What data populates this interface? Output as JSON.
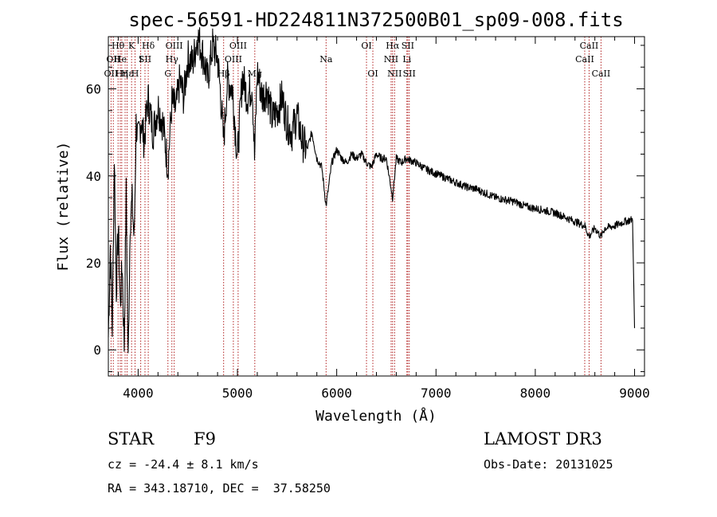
{
  "chart_data": {
    "type": "line",
    "title": "spec-56591-HD224811N372500B01_sp09-008.fits",
    "xlabel": "Wavelength (Å)",
    "ylabel": "Flux (relative)",
    "xlim": [
      3700,
      9100
    ],
    "ylim": [
      -6,
      72
    ],
    "xticks": [
      4000,
      5000,
      6000,
      7000,
      8000,
      9000
    ],
    "yticks": [
      0,
      20,
      40,
      60
    ],
    "series": [
      {
        "name": "spectrum",
        "x": [
          3700,
          3720,
          3740,
          3760,
          3780,
          3800,
          3820,
          3840,
          3860,
          3880,
          3900,
          3920,
          3940,
          3960,
          3980,
          4000,
          4030,
          4060,
          4100,
          4150,
          4200,
          4250,
          4300,
          4340,
          4380,
          4420,
          4460,
          4500,
          4550,
          4600,
          4650,
          4700,
          4750,
          4800,
          4830,
          4861,
          4900,
          4950,
          5000,
          5050,
          5100,
          5150,
          5172,
          5200,
          5250,
          5300,
          5350,
          5400,
          5450,
          5500,
          5550,
          5600,
          5650,
          5700,
          5750,
          5800,
          5850,
          5893,
          5950,
          6000,
          6050,
          6100,
          6150,
          6200,
          6250,
          6300,
          6350,
          6400,
          6450,
          6500,
          6563,
          6600,
          6650,
          6700,
          6800,
          6900,
          7000,
          7100,
          7200,
          7300,
          7400,
          7500,
          7600,
          7700,
          7800,
          7900,
          8000,
          8100,
          8200,
          8300,
          8400,
          8500,
          8542,
          8600,
          8662,
          8700,
          8800,
          8900,
          8980,
          9000
        ],
        "y": [
          3,
          24,
          5,
          45,
          14,
          28,
          10,
          20,
          1,
          36,
          -3,
          30,
          34,
          25,
          52,
          48,
          53,
          48,
          58,
          50,
          56,
          52,
          42,
          57,
          55,
          62,
          58,
          67,
          66,
          72,
          68,
          62,
          70,
          67,
          59,
          48,
          62,
          60,
          44,
          63,
          58,
          61,
          44,
          64,
          58,
          60,
          53,
          55,
          58,
          52,
          50,
          54,
          48,
          46,
          50,
          44,
          42,
          33,
          43,
          46,
          44,
          43,
          45,
          44,
          45,
          43,
          42,
          45,
          44,
          44,
          35,
          44,
          43,
          44,
          43,
          41.5,
          40.5,
          39.5,
          38.5,
          37.5,
          37,
          36,
          35,
          34.5,
          34,
          33,
          32.5,
          32,
          31.5,
          30.5,
          29.5,
          28.5,
          26,
          28,
          26,
          28,
          28.5,
          29.5,
          30,
          5
        ]
      }
    ],
    "lines": [
      {
        "x": 3727,
        "label": "OII",
        "row": 2
      },
      {
        "x": 3750,
        "label": "OII",
        "row": 1
      },
      {
        "x": 3798,
        "label": "Hθ",
        "row": 0
      },
      {
        "x": 3820,
        "label": "He",
        "row": 1
      },
      {
        "x": 3835,
        "label": "Hη",
        "row": 2
      },
      {
        "x": 3869,
        "label": "",
        "row": -1
      },
      {
        "x": 3889,
        "label": "Hε",
        "row": 2
      },
      {
        "x": 3934,
        "label": "K",
        "row": 0
      },
      {
        "x": 3969,
        "label": "H",
        "row": 2
      },
      {
        "x": 4026,
        "label": "I",
        "row": 1
      },
      {
        "x": 4069,
        "label": "SII",
        "row": 1
      },
      {
        "x": 4102,
        "label": "Hδ",
        "row": 0
      },
      {
        "x": 4300,
        "label": "G",
        "row": 2
      },
      {
        "x": 4340,
        "label": "Hγ",
        "row": 1
      },
      {
        "x": 4363,
        "label": "OIII",
        "row": 0
      },
      {
        "x": 4861,
        "label": "Hβ",
        "row": 2
      },
      {
        "x": 4959,
        "label": "OIII",
        "row": 1
      },
      {
        "x": 5007,
        "label": "OIII",
        "row": 0
      },
      {
        "x": 5175,
        "label": "Mg",
        "row": 2
      },
      {
        "x": 5893,
        "label": "Na",
        "row": 1
      },
      {
        "x": 6300,
        "label": "OI",
        "row": 0
      },
      {
        "x": 6364,
        "label": "OI",
        "row": 2
      },
      {
        "x": 6548,
        "label": "NII",
        "row": 1
      },
      {
        "x": 6563,
        "label": "Hα",
        "row": 0
      },
      {
        "x": 6583,
        "label": "NII",
        "row": 2
      },
      {
        "x": 6707,
        "label": "Li",
        "row": 1
      },
      {
        "x": 6716,
        "label": "SII",
        "row": 0
      },
      {
        "x": 6731,
        "label": "SII",
        "row": 2
      },
      {
        "x": 8498,
        "label": "CaII",
        "row": 1
      },
      {
        "x": 8542,
        "label": "CaII",
        "row": 0
      },
      {
        "x": 8662,
        "label": "CaII",
        "row": 2
      }
    ]
  },
  "info": {
    "object_class": "STAR",
    "subclass": "F9",
    "survey": "LAMOST DR3",
    "redshift_text": "cz = -24.4 ± 8.1 km/s",
    "obs_date": "Obs-Date: 20131025",
    "coords": "RA = 343.18710, DEC =  37.58250"
  },
  "colors": {
    "lines": "#b22222",
    "spectrum": "#000000"
  }
}
